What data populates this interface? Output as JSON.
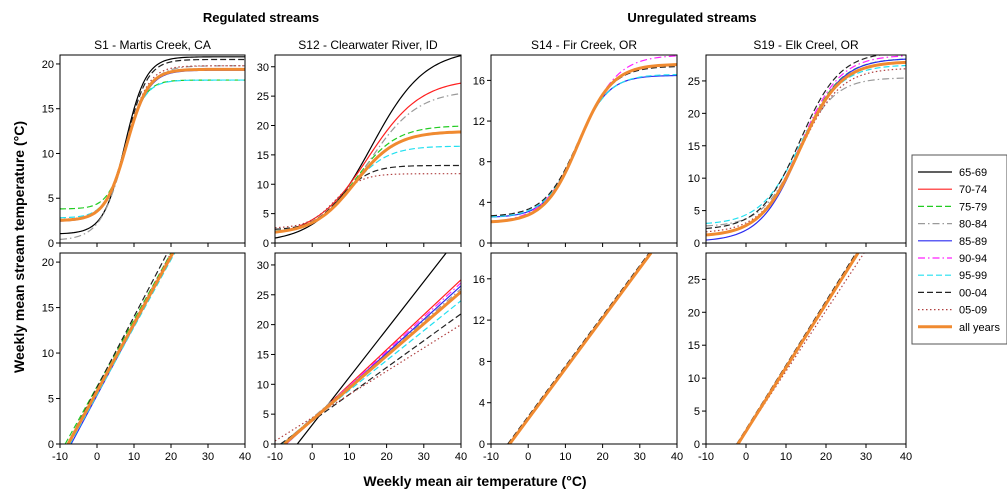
{
  "figure": {
    "xlabel": "Weekly mean air temperature (°C)",
    "ylabel": "Weekly mean stream temperature (°C)",
    "groups": [
      {
        "label": "Regulated streams"
      },
      {
        "label": "Unregulated streams"
      }
    ]
  },
  "legend": {
    "placement": "right",
    "entries": [
      {
        "name": "65-69",
        "color": "#000000",
        "dash": "solid"
      },
      {
        "name": "70-74",
        "color": "#ff2020",
        "dash": "solid"
      },
      {
        "name": "75-79",
        "color": "#22cc22",
        "dash": "dashed"
      },
      {
        "name": "80-84",
        "color": "#9a9a9a",
        "dash": "dashdot"
      },
      {
        "name": "85-89",
        "color": "#2a2af0",
        "dash": "solid"
      },
      {
        "name": "90-94",
        "color": "#ff22ff",
        "dash": "dashdot"
      },
      {
        "name": "95-99",
        "color": "#22e0f0",
        "dash": "dashed"
      },
      {
        "name": "00-04",
        "color": "#222222",
        "dash": "dashed"
      },
      {
        "name": "05-09",
        "color": "#b04040",
        "dash": "dotted"
      },
      {
        "name": "all years",
        "color": "#f08a30",
        "dash": "thick"
      }
    ]
  },
  "chart_data": [
    {
      "type": "line",
      "title": "S1 - Martis Creek, CA",
      "row": "top",
      "xlim": [
        -10,
        40
      ],
      "xticks": [
        -10,
        0,
        10,
        20,
        30,
        40
      ],
      "ylim": [
        0,
        21
      ],
      "yticks": [
        0,
        5,
        10,
        15,
        20
      ],
      "model": "logistic",
      "series": [
        {
          "name": "65-69",
          "params": {
            "a": 1.0,
            "b": 20.8,
            "mu": 7.5,
            "g": 0.35
          }
        },
        {
          "name": "75-79",
          "params": {
            "a": 3.8,
            "b": 18.2,
            "mu": 8.0,
            "g": 0.4
          }
        },
        {
          "name": "80-84",
          "params": {
            "a": 0.3,
            "b": 19.8,
            "mu": 7.5,
            "g": 0.3
          }
        },
        {
          "name": "85-89",
          "params": {
            "a": 2.4,
            "b": 19.3,
            "mu": 8.0,
            "g": 0.33
          }
        },
        {
          "name": "95-99",
          "params": {
            "a": 2.8,
            "b": 18.2,
            "mu": 7.5,
            "g": 0.37
          }
        },
        {
          "name": "00-04",
          "params": {
            "a": 2.5,
            "b": 20.5,
            "mu": 8.0,
            "g": 0.35
          }
        },
        {
          "name": "05-09",
          "params": {
            "a": 2.6,
            "b": 19.8,
            "mu": 8.0,
            "g": 0.34
          }
        },
        {
          "name": "all years",
          "params": {
            "a": 2.5,
            "b": 19.4,
            "mu": 8.0,
            "g": 0.34
          }
        }
      ]
    },
    {
      "type": "line",
      "title": "S12 - Clearwater River, ID",
      "row": "top",
      "xlim": [
        -10,
        40
      ],
      "xticks": [
        -10,
        0,
        10,
        20,
        30,
        40
      ],
      "ylim": [
        0,
        32
      ],
      "yticks": [
        0,
        5,
        10,
        15,
        20,
        25,
        30
      ],
      "model": "logistic",
      "series": [
        {
          "name": "65-69",
          "params": {
            "a": 0.0,
            "b": 33.0,
            "mu": 16.0,
            "g": 0.14
          }
        },
        {
          "name": "70-74",
          "params": {
            "a": 1.0,
            "b": 28.0,
            "mu": 15.0,
            "g": 0.14
          }
        },
        {
          "name": "75-79",
          "params": {
            "a": 1.5,
            "b": 20.0,
            "mu": 11.5,
            "g": 0.18
          }
        },
        {
          "name": "80-84",
          "params": {
            "a": 1.2,
            "b": 26.0,
            "mu": 15.0,
            "g": 0.15
          }
        },
        {
          "name": "85-89",
          "params": {
            "a": 1.5,
            "b": 19.0,
            "mu": 11.5,
            "g": 0.18
          }
        },
        {
          "name": "90-94",
          "params": {
            "a": 1.5,
            "b": 19.0,
            "mu": 11.5,
            "g": 0.18
          }
        },
        {
          "name": "95-99",
          "params": {
            "a": 1.8,
            "b": 16.5,
            "mu": 10.0,
            "g": 0.2
          }
        },
        {
          "name": "00-04",
          "params": {
            "a": 2.2,
            "b": 13.2,
            "mu": 7.5,
            "g": 0.25
          }
        },
        {
          "name": "05-09",
          "params": {
            "a": 2.5,
            "b": 11.8,
            "mu": 6.0,
            "g": 0.28
          }
        },
        {
          "name": "all years",
          "params": {
            "a": 1.5,
            "b": 19.0,
            "mu": 11.5,
            "g": 0.18
          }
        }
      ]
    },
    {
      "type": "line",
      "title": "S14 - Fir Creek, OR",
      "row": "top",
      "xlim": [
        -10,
        40
      ],
      "xticks": [
        -10,
        0,
        10,
        20,
        30,
        40
      ],
      "ylim": [
        0,
        18.5
      ],
      "yticks": [
        0,
        4,
        8,
        12,
        16
      ],
      "model": "logistic",
      "series": [
        {
          "name": "80-84",
          "params": {
            "a": 2.0,
            "b": 17.6,
            "mu": 13.5,
            "g": 0.22
          }
        },
        {
          "name": "85-89",
          "params": {
            "a": 2.5,
            "b": 16.5,
            "mu": 13.0,
            "g": 0.24
          }
        },
        {
          "name": "90-94",
          "params": {
            "a": 2.0,
            "b": 18.5,
            "mu": 14.0,
            "g": 0.2
          }
        },
        {
          "name": "95-99",
          "params": {
            "a": 2.5,
            "b": 16.6,
            "mu": 13.0,
            "g": 0.23
          }
        },
        {
          "name": "00-04",
          "params": {
            "a": 2.6,
            "b": 17.4,
            "mu": 13.5,
            "g": 0.22
          }
        },
        {
          "name": "all years",
          "params": {
            "a": 2.0,
            "b": 17.6,
            "mu": 13.5,
            "g": 0.22
          }
        }
      ]
    },
    {
      "type": "line",
      "title": "S19 - Elk Creel, OR",
      "row": "top",
      "xlim": [
        -10,
        40
      ],
      "xticks": [
        -10,
        0,
        10,
        20,
        30,
        40
      ],
      "ylim": [
        0,
        29
      ],
      "yticks": [
        0,
        5,
        10,
        15,
        20,
        25
      ],
      "model": "logistic",
      "series": [
        {
          "name": "75-79",
          "params": {
            "a": 1.0,
            "b": 28.5,
            "mu": 13.5,
            "g": 0.2
          }
        },
        {
          "name": "80-84",
          "params": {
            "a": 2.5,
            "b": 25.5,
            "mu": 13.0,
            "g": 0.22
          }
        },
        {
          "name": "85-89",
          "params": {
            "a": 0.2,
            "b": 28.5,
            "mu": 13.5,
            "g": 0.2
          }
        },
        {
          "name": "90-94",
          "params": {
            "a": 1.0,
            "b": 29.0,
            "mu": 13.5,
            "g": 0.2
          }
        },
        {
          "name": "95-99",
          "params": {
            "a": 2.8,
            "b": 27.5,
            "mu": 13.5,
            "g": 0.2
          }
        },
        {
          "name": "00-04",
          "params": {
            "a": 2.0,
            "b": 29.5,
            "mu": 13.5,
            "g": 0.2
          }
        },
        {
          "name": "05-09",
          "params": {
            "a": 1.5,
            "b": 27.0,
            "mu": 13.5,
            "g": 0.2
          }
        },
        {
          "name": "all years",
          "params": {
            "a": 1.0,
            "b": 28.0,
            "mu": 13.5,
            "g": 0.2
          }
        }
      ]
    },
    {
      "type": "line",
      "row": "bottom",
      "xlim": [
        -10,
        40
      ],
      "xticks": [
        -10,
        0,
        10,
        20,
        30,
        40
      ],
      "ylim": [
        0,
        21
      ],
      "yticks": [
        0,
        5,
        10,
        15,
        20
      ],
      "model": "linear",
      "series": [
        {
          "name": "75-79",
          "x": [
            -8.6,
            20.0
          ],
          "y": [
            0,
            21
          ]
        },
        {
          "name": "85-89",
          "x": [
            -7.0,
            20.5
          ],
          "y": [
            0,
            21
          ]
        },
        {
          "name": "95-99",
          "x": [
            -7.3,
            21.0
          ],
          "y": [
            0,
            21
          ]
        },
        {
          "name": "00-04",
          "x": [
            -8.0,
            19.0
          ],
          "y": [
            0,
            21
          ]
        },
        {
          "name": "05-09",
          "x": [
            -7.8,
            20.0
          ],
          "y": [
            0,
            21
          ]
        },
        {
          "name": "all years",
          "x": [
            -7.8,
            20.5
          ],
          "y": [
            0,
            21
          ]
        }
      ]
    },
    {
      "type": "line",
      "row": "bottom",
      "xlim": [
        -10,
        40
      ],
      "xticks": [
        -10,
        0,
        10,
        20,
        30,
        40
      ],
      "ylim": [
        0,
        32
      ],
      "yticks": [
        0,
        5,
        10,
        15,
        20,
        25,
        30
      ],
      "model": "linear",
      "series": [
        {
          "name": "65-69",
          "x": [
            -4.0,
            36.0
          ],
          "y": [
            0,
            32
          ]
        },
        {
          "name": "70-74",
          "x": [
            -7.0,
            40.0
          ],
          "y": [
            0,
            27.5
          ]
        },
        {
          "name": "75-79",
          "x": [
            -8.0,
            40.0
          ],
          "y": [
            0,
            25.5
          ]
        },
        {
          "name": "80-84",
          "x": [
            -8.0,
            40.0
          ],
          "y": [
            0,
            26.0
          ]
        },
        {
          "name": "85-89",
          "x": [
            -7.0,
            40.0
          ],
          "y": [
            0,
            26.5
          ]
        },
        {
          "name": "90-94",
          "x": [
            -7.0,
            40.0
          ],
          "y": [
            0,
            27.0
          ]
        },
        {
          "name": "95-99",
          "x": [
            -8.0,
            40.0
          ],
          "y": [
            0,
            24.0
          ]
        },
        {
          "name": "00-04",
          "x": [
            -8.5,
            40.0
          ],
          "y": [
            0,
            21.8
          ]
        },
        {
          "name": "05-09",
          "x": [
            -10.0,
            40.0
          ],
          "y": [
            0.5,
            20.0
          ]
        },
        {
          "name": "all years",
          "x": [
            -7.5,
            40.0
          ],
          "y": [
            0,
            25.5
          ]
        }
      ]
    },
    {
      "type": "line",
      "row": "bottom",
      "xlim": [
        -10,
        40
      ],
      "xticks": [
        -10,
        0,
        10,
        20,
        30,
        40
      ],
      "ylim": [
        0,
        18.5
      ],
      "yticks": [
        0,
        4,
        8,
        12,
        16
      ],
      "model": "linear",
      "series": [
        {
          "name": "00-04",
          "x": [
            -5.5,
            32.5
          ],
          "y": [
            0,
            18.5
          ]
        },
        {
          "name": "all years",
          "x": [
            -5.0,
            33.0
          ],
          "y": [
            0,
            18.5
          ]
        }
      ]
    },
    {
      "type": "line",
      "row": "bottom",
      "xlim": [
        -10,
        40
      ],
      "xticks": [
        -10,
        0,
        10,
        20,
        30,
        40
      ],
      "ylim": [
        0,
        29
      ],
      "yticks": [
        0,
        5,
        10,
        15,
        20,
        25
      ],
      "model": "linear",
      "series": [
        {
          "name": "05-09",
          "x": [
            -2.0,
            29.5
          ],
          "y": [
            0,
            29
          ]
        },
        {
          "name": "00-04",
          "x": [
            -2.3,
            27.5
          ],
          "y": [
            0,
            29
          ]
        },
        {
          "name": "all years",
          "x": [
            -2.0,
            28.0
          ],
          "y": [
            0,
            29
          ]
        }
      ]
    }
  ]
}
